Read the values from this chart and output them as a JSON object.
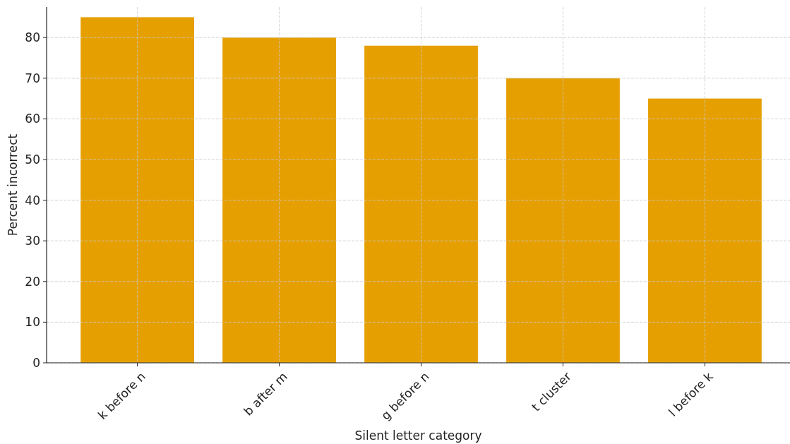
{
  "chart_data": {
    "type": "bar",
    "xlabel": "Silent letter category",
    "ylabel": "Percent incorrect",
    "categories": [
      "k before n",
      "b after m",
      "g before n",
      "t cluster",
      "l before k"
    ],
    "values": [
      85,
      80,
      78,
      70,
      65
    ],
    "color": "#e69f00",
    "ylim": [
      0,
      87.5
    ],
    "yticks": [
      0,
      10,
      20,
      30,
      40,
      50,
      60,
      70,
      80
    ],
    "grid": true
  }
}
